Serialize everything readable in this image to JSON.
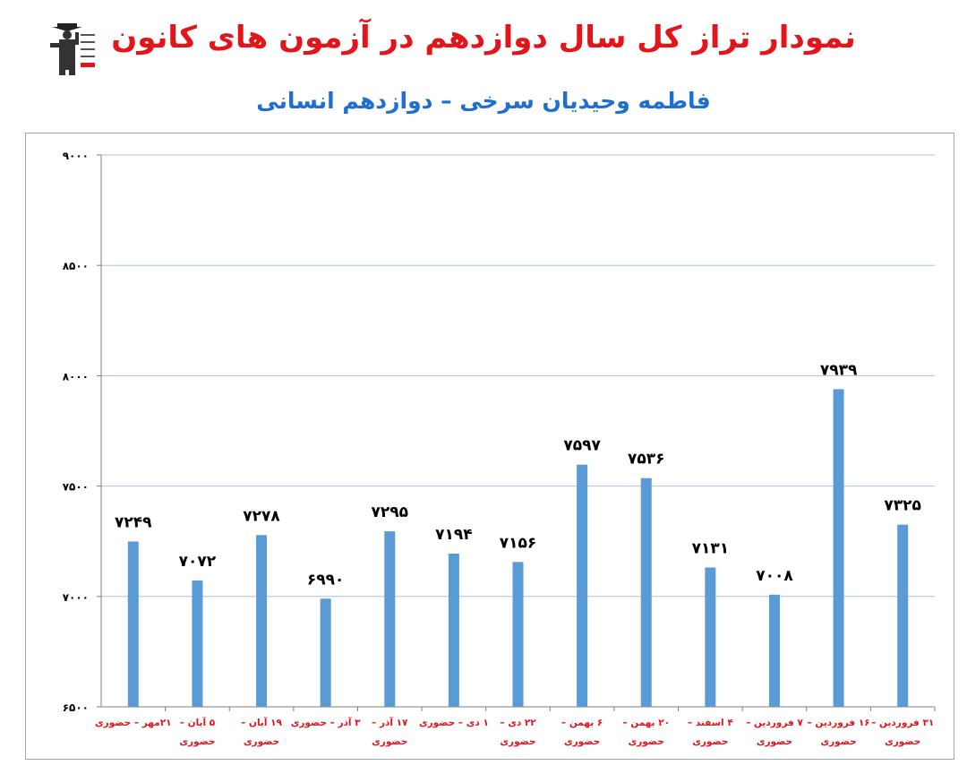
{
  "header": {
    "title": "نمودار تراز کل سال دوازدهم در آزمون های کانون",
    "subtitle": "فاطمه وحیدیان سرخی – دوازدهم انسانی",
    "logo_icon": "kanoon-graduate-logo"
  },
  "colors": {
    "bar": "#5b9bd5",
    "title": "#e4141b",
    "subtitle": "#1f6fd1",
    "category_label": "#e4141b",
    "value_label": "#000000",
    "grid": "#a9c3e0"
  },
  "chart_data": {
    "type": "bar",
    "categories": [
      [
        "۲۱مهر – حضوری"
      ],
      [
        "۵ آبان –",
        "حضوری"
      ],
      [
        "۱۹ آبان –",
        "حضوری"
      ],
      [
        "۳ آذر – حضوری"
      ],
      [
        "۱۷ آذر –",
        "حضوری"
      ],
      [
        "۱ دی – حضوری"
      ],
      [
        "۲۲ دی –",
        "حضوری"
      ],
      [
        "۶ بهمن –",
        "حضوری"
      ],
      [
        "۲۰ بهمن –",
        "حضوری"
      ],
      [
        "۴ اسفند –",
        "حضوری"
      ],
      [
        "۷ فروردین –",
        "حضوری"
      ],
      [
        "۱۶ فروردین –",
        "حضوری"
      ],
      [
        "۳۱ فروردین –",
        "حضوری"
      ]
    ],
    "values": [
      7249,
      7072,
      7278,
      6990,
      7295,
      7194,
      7156,
      7597,
      7536,
      7131,
      7008,
      7939,
      7325
    ],
    "value_labels": [
      "۷۲۴۹",
      "۷۰۷۲",
      "۷۲۷۸",
      "۶۹۹۰",
      "۷۲۹۵",
      "۷۱۹۴",
      "۷۱۵۶",
      "۷۵۹۷",
      "۷۵۳۶",
      "۷۱۳۱",
      "۷۰۰۸",
      "۷۹۳۹",
      "۷۳۲۵"
    ],
    "ylim": [
      6500,
      9000
    ],
    "yticks": [
      6500,
      7000,
      7500,
      8000,
      8500,
      9000
    ],
    "ytick_labels": [
      "۶۵۰۰",
      "۷۰۰۰",
      "۷۵۰۰",
      "۸۰۰۰",
      "۸۵۰۰",
      "۹۰۰۰"
    ],
    "grid": true,
    "legend": "none"
  }
}
